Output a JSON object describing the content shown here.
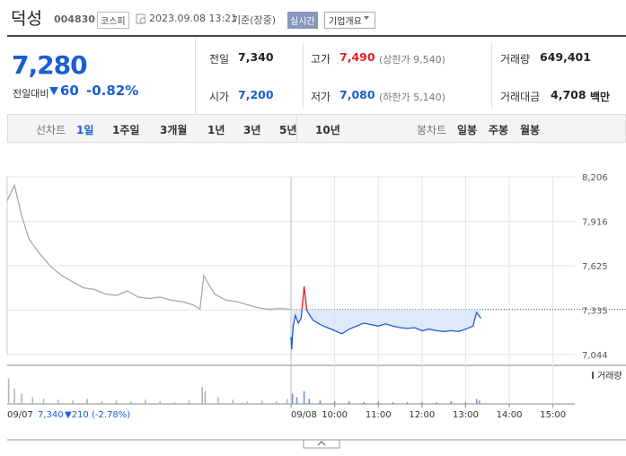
{
  "header": {
    "name": "덕성",
    "code": "004830",
    "market": "코스피",
    "datetime": "2023.09.08 13:21",
    "basis": "기준(장중)",
    "realtime": "실시간",
    "company_info": "기업개요"
  },
  "quote": {
    "price": "7,280",
    "change_label": "전일대비",
    "change": "60",
    "change_pct": "-0.82%"
  },
  "stats": [
    {
      "label": "전일",
      "value": "7,340"
    },
    {
      "label": "고가",
      "value": "7,490",
      "sub": "(상한가 9,540)"
    },
    {
      "label": "거래량",
      "value": "649,401"
    },
    {
      "label": "시가",
      "value": "7,200"
    },
    {
      "label": "저가",
      "value": "7,080",
      "sub": "(하한가 5,140)"
    },
    {
      "label": "거래대금",
      "value": "4,708",
      "unit": "백만"
    }
  ],
  "tabs": {
    "line_label": "선차트",
    "line": [
      "1일",
      "1주일",
      "3개월",
      "1년",
      "3년",
      "5년",
      "10년"
    ],
    "candle_label": "봉차트",
    "candle": [
      "일봉",
      "주봉",
      "월봉"
    ]
  },
  "chart_data": {
    "type": "line",
    "xlim": [
      -390,
      390
    ],
    "xticks": [
      {
        "value": 0,
        "label": "09/08"
      },
      {
        "value": 60,
        "label": "10:00"
      },
      {
        "value": 120,
        "label": "11:00"
      },
      {
        "value": 180,
        "label": "12:00"
      },
      {
        "value": 240,
        "label": "13:00"
      },
      {
        "value": 300,
        "label": "14:00"
      },
      {
        "value": 360,
        "label": "15:00"
      }
    ],
    "ylim": [
      7044,
      8206
    ],
    "yticks": [
      {
        "value": 8206,
        "label": "8,206"
      },
      {
        "value": 7916,
        "label": "7,916"
      },
      {
        "value": 7625,
        "label": "7,625"
      },
      {
        "value": 7335,
        "label": "7,335"
      },
      {
        "value": 7044,
        "label": "7,044"
      }
    ],
    "grid": true,
    "reference": 7340,
    "series": [
      {
        "color": "#a8a8a8",
        "x": [
          -390,
          -380,
          -370,
          -360,
          -345,
          -330,
          -315,
          -300,
          -285,
          -270,
          -255,
          -240,
          -225,
          -210,
          -195,
          -180,
          -165,
          -150,
          -135,
          -125,
          -120,
          -115,
          -105,
          -90,
          -75,
          -60,
          -45,
          -30,
          -15,
          -1
        ],
        "values": [
          8050,
          8150,
          7950,
          7800,
          7700,
          7620,
          7560,
          7520,
          7480,
          7470,
          7440,
          7430,
          7460,
          7420,
          7410,
          7420,
          7400,
          7390,
          7370,
          7340,
          7560,
          7520,
          7440,
          7400,
          7390,
          7370,
          7350,
          7340,
          7345,
          7340
        ]
      },
      {
        "color": "#1a5ed1",
        "up_color": "#e8202a",
        "x": [
          0,
          1,
          3,
          6,
          10,
          14,
          18,
          22,
          30,
          40,
          50,
          60,
          70,
          80,
          90,
          100,
          110,
          120,
          130,
          140,
          150,
          160,
          170,
          180,
          190,
          200,
          210,
          220,
          230,
          240,
          250,
          255,
          261
        ],
        "values": [
          7160,
          7080,
          7230,
          7300,
          7250,
          7280,
          7490,
          7330,
          7270,
          7240,
          7220,
          7200,
          7180,
          7210,
          7230,
          7250,
          7240,
          7230,
          7245,
          7230,
          7220,
          7215,
          7220,
          7200,
          7210,
          7200,
          7195,
          7200,
          7195,
          7210,
          7230,
          7320,
          7280
        ]
      }
    ],
    "volume_label": "거래량",
    "vlim": [
      0,
      40000
    ],
    "volume": [
      {
        "color": "#b5b5b5",
        "x": [
          -388,
          -380,
          -370,
          -355,
          -340,
          -320,
          -300,
          -280,
          -260,
          -240,
          -220,
          -200,
          -180,
          -160,
          -140,
          -122,
          -118,
          -100,
          -80,
          -60,
          -40,
          -20,
          -5
        ],
        "values": [
          30000,
          18000,
          12000,
          8000,
          6000,
          5000,
          4000,
          6000,
          3000,
          4000,
          3000,
          5000,
          3000,
          2000,
          4000,
          20000,
          15000,
          8000,
          5000,
          3000,
          4000,
          3000,
          6000
        ]
      },
      {
        "color": "#7b8fd6",
        "x": [
          2,
          8,
          18,
          25,
          40,
          60,
          80,
          100,
          120,
          140,
          160,
          180,
          200,
          220,
          240,
          255,
          259
        ],
        "values": [
          12000,
          8000,
          15000,
          6000,
          4000,
          3000,
          3000,
          2000,
          3000,
          2000,
          2000,
          2000,
          2000,
          3000,
          2000,
          6000,
          4000
        ]
      }
    ],
    "prev_summary": {
      "date": "09/07",
      "close": "7,340",
      "change": "▼210 (-2.78%)"
    }
  }
}
